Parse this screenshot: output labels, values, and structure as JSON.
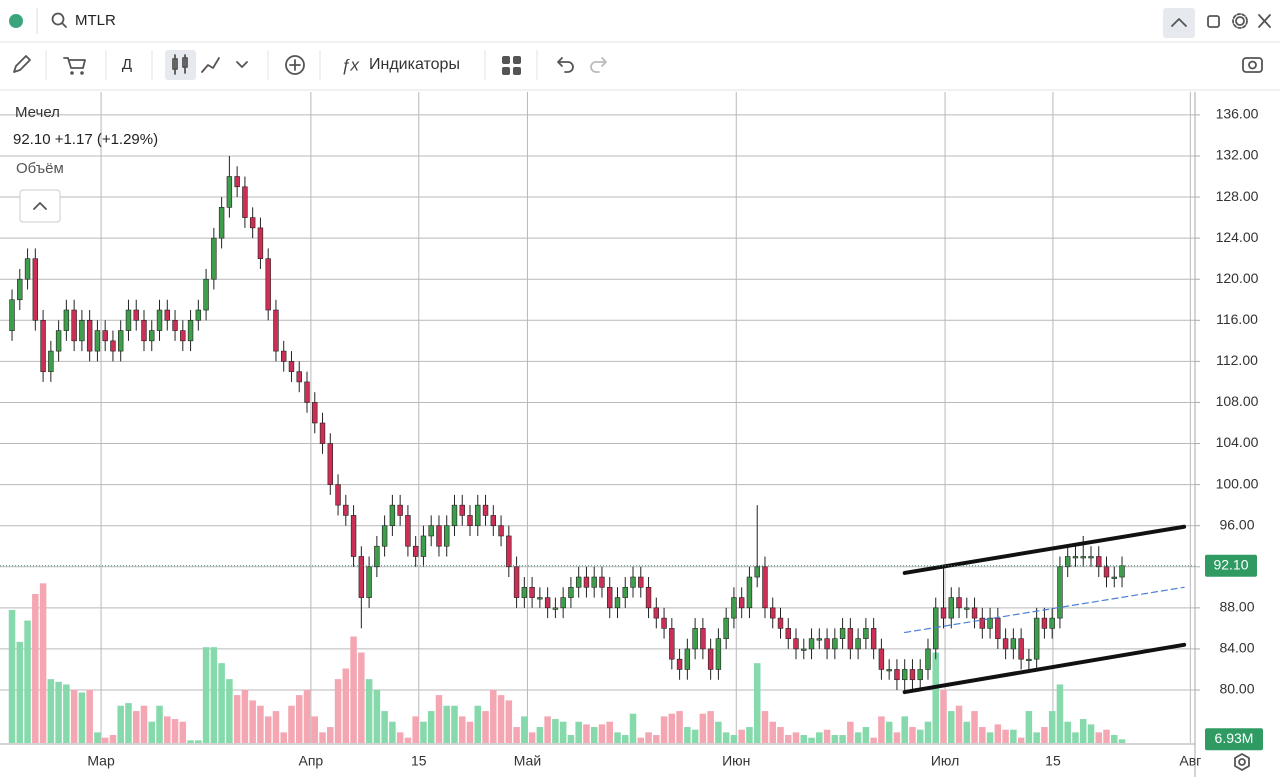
{
  "toolbar": {
    "symbol": "MTLR",
    "interval": "Д",
    "indicators": "Индикаторы"
  },
  "chart_data": {
    "type": "candlestick",
    "title": "Мечел",
    "subtitle": "92.10 +1.17 (+1.29%)",
    "volume_title": "Объём",
    "up_color": "#3f9e4c",
    "down_color": "#cc2f55",
    "volume_up_color": "#86d9ab",
    "volume_down_color": "#f4a7b3",
    "open": [
      115,
      118,
      120,
      122,
      116,
      111,
      113,
      115,
      117,
      114,
      116,
      113,
      115,
      114,
      113,
      115,
      117,
      116,
      114,
      115,
      117,
      116,
      115,
      114,
      116,
      117,
      120,
      124,
      127,
      130,
      129,
      126,
      125,
      122,
      117,
      113,
      112,
      111,
      110,
      108,
      106,
      104,
      100,
      98,
      97,
      93,
      89,
      92,
      94,
      96,
      98,
      97,
      94,
      93,
      95,
      96,
      94,
      96,
      98,
      97,
      96,
      98,
      97,
      96,
      95,
      92,
      89,
      90,
      89,
      89,
      88,
      88,
      89,
      90,
      91,
      90,
      91,
      90,
      88,
      89,
      90,
      91,
      90,
      88,
      87,
      86,
      83,
      82,
      84,
      86,
      84,
      82,
      85,
      87,
      89,
      88,
      91,
      92,
      88,
      87,
      86,
      85,
      84,
      84,
      85,
      85,
      84,
      85,
      86,
      84,
      85,
      86,
      84,
      82,
      82,
      81,
      82,
      81,
      82,
      84,
      88,
      87,
      89,
      88,
      88,
      87,
      86,
      87,
      85,
      84,
      85,
      83,
      83,
      87,
      86,
      87,
      92,
      93,
      93,
      93,
      93,
      92,
      91,
      91
    ],
    "high": [
      119,
      121,
      123,
      123,
      117,
      114,
      116,
      118,
      118,
      117,
      117,
      116,
      116,
      115,
      116,
      118,
      118,
      117,
      116,
      118,
      118,
      117,
      116,
      117,
      118,
      121,
      125,
      128,
      132,
      131,
      130,
      127,
      126,
      123,
      118,
      114,
      113,
      112,
      111,
      109,
      107,
      105,
      101,
      99,
      98,
      94,
      93,
      95,
      97,
      99,
      99,
      98,
      95,
      96,
      97,
      97,
      97,
      99,
      99,
      98,
      99,
      99,
      98,
      97,
      96,
      93,
      91,
      91,
      90,
      90,
      89,
      90,
      91,
      92,
      92,
      92,
      92,
      91,
      90,
      91,
      92,
      92,
      91,
      89,
      88,
      87,
      84,
      85,
      87,
      87,
      85,
      86,
      88,
      90,
      90,
      92,
      98,
      93,
      89,
      88,
      87,
      86,
      85,
      86,
      86,
      86,
      86,
      87,
      87,
      86,
      87,
      87,
      85,
      83,
      83,
      83,
      83,
      83,
      85,
      89,
      92,
      90,
      90,
      89,
      89,
      88,
      88,
      88,
      86,
      86,
      86,
      84,
      88,
      88,
      88,
      93,
      94,
      94,
      95,
      94,
      94,
      93,
      92,
      93
    ],
    "low": [
      114,
      117,
      119,
      115,
      110,
      110,
      112,
      114,
      113,
      113,
      112,
      112,
      113,
      112,
      112,
      114,
      115,
      113,
      113,
      114,
      115,
      114,
      113,
      113,
      115,
      116,
      119,
      123,
      126,
      128,
      125,
      124,
      121,
      116,
      112,
      111,
      110,
      109,
      107,
      105,
      103,
      99,
      97,
      96,
      92,
      86,
      88,
      91,
      93,
      95,
      96,
      93,
      92,
      92,
      94,
      93,
      93,
      95,
      96,
      95,
      95,
      96,
      95,
      94,
      91,
      88,
      88,
      88,
      88,
      87,
      87,
      87,
      88,
      89,
      89,
      89,
      89,
      87,
      87,
      88,
      89,
      89,
      87,
      86,
      85,
      82,
      81,
      81,
      83,
      83,
      81,
      81,
      84,
      86,
      87,
      87,
      90,
      87,
      86,
      85,
      84,
      83,
      83,
      83,
      84,
      83,
      83,
      84,
      83,
      83,
      84,
      83,
      81,
      81,
      80,
      80,
      80,
      80,
      81,
      83,
      86,
      86,
      87,
      87,
      86,
      85,
      85,
      84,
      83,
      83,
      82,
      82,
      82,
      85,
      85,
      86,
      91,
      92,
      92,
      92,
      91,
      90,
      90,
      90
    ],
    "close": [
      118,
      120,
      122,
      116,
      111,
      113,
      115,
      117,
      114,
      116,
      113,
      115,
      114,
      113,
      115,
      117,
      116,
      114,
      115,
      117,
      116,
      115,
      114,
      116,
      117,
      120,
      124,
      127,
      130,
      129,
      126,
      125,
      122,
      117,
      113,
      112,
      111,
      110,
      108,
      106,
      104,
      100,
      98,
      97,
      93,
      89,
      92,
      94,
      96,
      98,
      97,
      94,
      93,
      95,
      96,
      94,
      96,
      98,
      97,
      96,
      98,
      97,
      96,
      95,
      92,
      89,
      90,
      89,
      89,
      88,
      88,
      89,
      90,
      91,
      90,
      91,
      90,
      88,
      89,
      90,
      91,
      90,
      88,
      87,
      86,
      83,
      82,
      84,
      86,
      84,
      82,
      85,
      87,
      89,
      88,
      91,
      92,
      88,
      87,
      86,
      85,
      84,
      84,
      85,
      85,
      84,
      85,
      86,
      84,
      85,
      86,
      84,
      82,
      82,
      81,
      82,
      81,
      82,
      84,
      88,
      87,
      89,
      88,
      88,
      87,
      86,
      87,
      85,
      84,
      85,
      83,
      83,
      87,
      86,
      87,
      92,
      93,
      93,
      93,
      93,
      92,
      91,
      91,
      92.1
    ],
    "volume": [
      250,
      190,
      230,
      280,
      300,
      120,
      115,
      110,
      100,
      95,
      100,
      20,
      10,
      15,
      70,
      75,
      60,
      70,
      40,
      70,
      50,
      45,
      40,
      5,
      5,
      180,
      180,
      150,
      120,
      90,
      100,
      80,
      70,
      50,
      60,
      20,
      70,
      90,
      100,
      50,
      20,
      30,
      120,
      140,
      200,
      170,
      120,
      100,
      60,
      40,
      20,
      10,
      50,
      40,
      60,
      90,
      70,
      70,
      50,
      40,
      70,
      60,
      100,
      90,
      80,
      30,
      50,
      20,
      30,
      50,
      45,
      40,
      15,
      40,
      35,
      30,
      35,
      40,
      20,
      15,
      55,
      10,
      20,
      15,
      50,
      55,
      60,
      30,
      25,
      55,
      60,
      40,
      20,
      15,
      25,
      30,
      150,
      60,
      40,
      30,
      15,
      20,
      15,
      10,
      20,
      25,
      15,
      15,
      40,
      20,
      30,
      10,
      50,
      40,
      20,
      50,
      30,
      25,
      40,
      170,
      100,
      60,
      70,
      40,
      60,
      30,
      20,
      35,
      25,
      25,
      10,
      60,
      20,
      30,
      60,
      110,
      40,
      20,
      45,
      35,
      20,
      25,
      15,
      6.93
    ],
    "last_price": {
      "value": 92.1,
      "label": "92.10"
    },
    "last_volume": {
      "value": 6.93,
      "label": "6.93M"
    },
    "ylim": [
      74.84,
      138.23
    ],
    "yticks": [
      {
        "value": 80,
        "label": "80.00"
      },
      {
        "value": 84,
        "label": "84.00"
      },
      {
        "value": 88,
        "label": "88.00"
      },
      {
        "value": 92,
        "label": "92.00"
      },
      {
        "value": 96,
        "label": "96.00"
      },
      {
        "value": 100,
        "label": "100.00"
      },
      {
        "value": 104,
        "label": "104.00"
      },
      {
        "value": 108,
        "label": "108.00"
      },
      {
        "value": 112,
        "label": "112.00"
      },
      {
        "value": 116,
        "label": "116.00"
      },
      {
        "value": 120,
        "label": "120.00"
      },
      {
        "value": 124,
        "label": "124.00"
      },
      {
        "value": 128,
        "label": "128.00"
      },
      {
        "value": 132,
        "label": "132.00"
      },
      {
        "value": 136,
        "label": "136.00"
      }
    ],
    "xlim": [
      -0.52,
      152.4
    ],
    "xticks": [
      {
        "value": 11.47,
        "label": "Мар"
      },
      {
        "value": 38.5,
        "label": "Апр"
      },
      {
        "value": 52.4,
        "label": "15"
      },
      {
        "value": 66.4,
        "label": "Май"
      },
      {
        "value": 93.3,
        "label": "Июн"
      },
      {
        "value": 120.2,
        "label": "Июл"
      },
      {
        "value": 134.1,
        "label": "15"
      },
      {
        "value": 151.8,
        "label": "Авг"
      }
    ],
    "volume_lim": [
      0,
      310
    ],
    "grid": true,
    "channel_lines": [
      {
        "x": [
          115,
          151
        ],
        "y": [
          91.4,
          95.9
        ],
        "color": "#111111",
        "style": "solid"
      },
      {
        "x": [
          115,
          151
        ],
        "y": [
          79.8,
          84.4
        ],
        "color": "#111111",
        "style": "solid"
      },
      {
        "x": [
          115,
          151
        ],
        "y": [
          85.6,
          90.0
        ],
        "color": "#4a7fd6",
        "style": "dashed"
      }
    ]
  }
}
